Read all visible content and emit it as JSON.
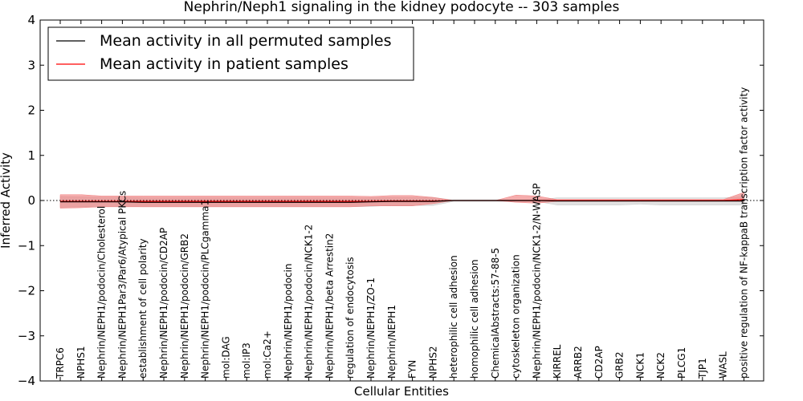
{
  "chart_data": {
    "type": "line",
    "title": "Nephrin/Neph1 signaling in the kidney podocyte -- 303 samples",
    "xlabel": "Cellular Entities",
    "ylabel": "Inferred Activity",
    "ylim": [
      -4,
      4
    ],
    "yticks": [
      "4",
      "3",
      "2",
      "1",
      "0",
      "−1",
      "−2",
      "−3",
      "−4"
    ],
    "ytick_values": [
      4,
      3,
      2,
      1,
      0,
      -1,
      -2,
      -3,
      -4
    ],
    "grid": false,
    "legend_position": "top-left",
    "categories": [
      "TRPC6",
      "NPHS1",
      "Nephrin/NEPH1/podocin/Cholesterol",
      "Nephrin/NEPH1Par3/Par6/Atypical PKCs",
      "establishment of cell polarity",
      "Nephrin/NEPH1/podocin/CD2AP",
      "Nephrin/NEPH1/podocin/GRB2",
      "Nephrin/NEPH1/podocin/PLCgamma1",
      "mol:DAG",
      "mol:IP3",
      "mol:Ca2+",
      "Nephrin/NEPH1/podocin",
      "Nephrin/NEPH1/podocin/NCK1-2",
      "Nephrin/NEPH1/beta Arrestin2",
      "regulation of endocytosis",
      "Nephrin/NEPH1/ZO-1",
      "Nephrin/NEPH1",
      "FYN",
      "NPHS2",
      "heterophilic cell adhesion",
      "homophilic cell adhesion",
      "ChemicalAbstracts:57-88-5",
      "cytoskeleton organization",
      "Nephrin/NEPH1/podocin/NCK1-2/N-WASP",
      "KIRREL",
      "ARRB2",
      "CD2AP",
      "GRB2",
      "NCK1",
      "NCK2",
      "PLCG1",
      "TJP1",
      "WASL",
      "positive regulation of NF-kappaB transcription factor activity"
    ],
    "series": [
      {
        "name": "Mean activity in all permuted samples",
        "color": "#000000",
        "band_color": "#c8c8c8",
        "values": [
          -0.03,
          -0.03,
          -0.03,
          -0.03,
          -0.04,
          -0.04,
          -0.04,
          -0.04,
          -0.04,
          -0.04,
          -0.04,
          -0.04,
          -0.04,
          -0.04,
          -0.04,
          -0.03,
          -0.02,
          -0.02,
          -0.02,
          0.0,
          0.0,
          0.0,
          0.0,
          0.0,
          -0.01,
          -0.01,
          -0.01,
          -0.01,
          -0.01,
          -0.01,
          -0.01,
          -0.01,
          -0.01,
          -0.01
        ],
        "upper": [
          0.09,
          0.08,
          0.07,
          0.07,
          0.06,
          0.06,
          0.06,
          0.06,
          0.06,
          0.06,
          0.06,
          0.06,
          0.06,
          0.06,
          0.06,
          0.06,
          0.07,
          0.07,
          0.07,
          0.01,
          0.01,
          0.01,
          0.01,
          0.01,
          0.06,
          0.06,
          0.06,
          0.06,
          0.06,
          0.06,
          0.06,
          0.06,
          0.06,
          0.08
        ],
        "lower": [
          -0.15,
          -0.14,
          -0.13,
          -0.13,
          -0.14,
          -0.14,
          -0.14,
          -0.14,
          -0.14,
          -0.14,
          -0.14,
          -0.14,
          -0.14,
          -0.14,
          -0.14,
          -0.13,
          -0.11,
          -0.11,
          -0.11,
          -0.02,
          -0.02,
          -0.02,
          -0.02,
          -0.02,
          -0.1,
          -0.1,
          -0.1,
          -0.1,
          -0.08,
          -0.1,
          -0.1,
          -0.1,
          -0.1,
          -0.1
        ]
      },
      {
        "name": "Mean activity in patient samples",
        "color": "#ff0000",
        "band_color": "#f08080",
        "values": [
          -0.02,
          -0.02,
          -0.02,
          -0.02,
          -0.02,
          -0.02,
          -0.02,
          -0.02,
          -0.02,
          -0.02,
          -0.02,
          -0.02,
          -0.02,
          -0.02,
          -0.02,
          -0.02,
          -0.01,
          -0.01,
          -0.01,
          0.0,
          0.0,
          0.0,
          0.0,
          0.0,
          0.0,
          0.0,
          0.0,
          0.0,
          0.0,
          0.0,
          0.0,
          0.0,
          0.0,
          0.02
        ],
        "upper": [
          0.13,
          0.13,
          0.1,
          0.1,
          0.1,
          0.1,
          0.1,
          0.1,
          0.1,
          0.1,
          0.1,
          0.1,
          0.1,
          0.1,
          0.1,
          0.09,
          0.11,
          0.11,
          0.07,
          0.0,
          0.0,
          0.0,
          0.12,
          0.1,
          0.02,
          0.02,
          0.02,
          0.02,
          0.02,
          0.02,
          0.02,
          0.02,
          0.02,
          0.18
        ],
        "lower": [
          -0.17,
          -0.16,
          -0.14,
          -0.14,
          -0.14,
          -0.14,
          -0.14,
          -0.14,
          -0.14,
          -0.14,
          -0.14,
          -0.14,
          -0.14,
          -0.14,
          -0.14,
          -0.12,
          -0.12,
          -0.12,
          -0.07,
          0.0,
          0.0,
          0.0,
          -0.04,
          -0.06,
          -0.02,
          -0.02,
          -0.02,
          -0.02,
          -0.02,
          -0.02,
          -0.02,
          -0.02,
          -0.02,
          -0.02
        ]
      }
    ]
  }
}
